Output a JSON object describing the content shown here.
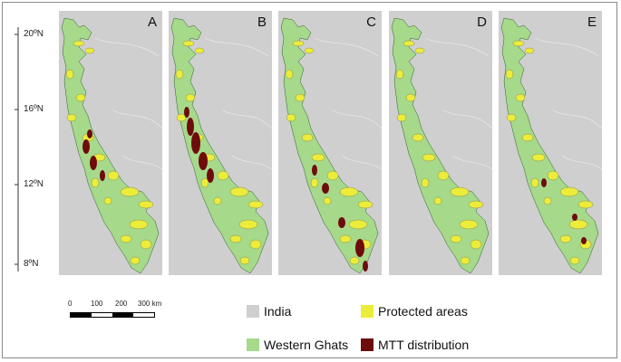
{
  "figure": {
    "panels": [
      {
        "id": "A",
        "label": "A",
        "mtt_focus": "central"
      },
      {
        "id": "B",
        "label": "B",
        "mtt_focus": "central-dense"
      },
      {
        "id": "C",
        "label": "C",
        "mtt_focus": "south"
      },
      {
        "id": "D",
        "label": "D",
        "mtt_focus": "none"
      },
      {
        "id": "E",
        "label": "E",
        "mtt_focus": "sparse"
      }
    ],
    "lat_ticks": [
      "20ºN",
      "16ºN",
      "12ºN",
      "8ºN"
    ],
    "scale_bar": {
      "labels": [
        "0",
        "100",
        "200",
        "300 km"
      ]
    },
    "legend": {
      "india": {
        "label": "India",
        "color": "#cfcfcf"
      },
      "protected": {
        "label": "Protected areas",
        "color": "#ecec3a"
      },
      "ghats": {
        "label": "Western Ghats",
        "color": "#a6d98a"
      },
      "mtt": {
        "label": "MTT distribution",
        "color": "#6e0c0c"
      }
    }
  }
}
